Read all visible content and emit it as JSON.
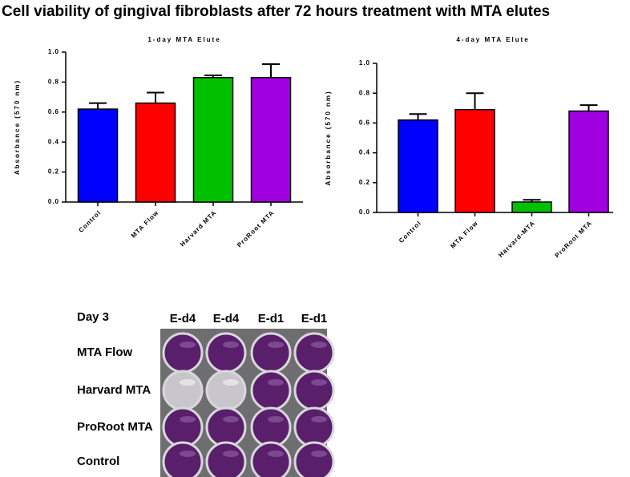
{
  "title": "Cell viability of gingival fibroblasts after 72 hours treatment with MTA elutes",
  "chart_data": [
    {
      "type": "bar",
      "title": "1-day MTA Elute",
      "y_label": "Absorbance (570 nm)",
      "categories": [
        "Control",
        "MTA Flow",
        "Harvard MTA",
        "ProRoot MTA"
      ],
      "colors": [
        "#0000ff",
        "#ff0000",
        "#00c000",
        "#a000e0"
      ],
      "values": [
        0.62,
        0.66,
        0.83,
        0.83
      ],
      "errors": [
        0.04,
        0.07,
        0.015,
        0.09
      ],
      "ylim": [
        0,
        1
      ],
      "yticks": [
        {
          "value": 0,
          "label": "0.0"
        },
        0.2,
        0.4,
        0.6,
        0.8,
        {
          "value": 1,
          "label": "1.0"
        }
      ]
    },
    {
      "type": "bar",
      "title": "4-day MTA Elute",
      "y_label": "Absorbance (570 nm)",
      "categories": [
        "Control",
        "MTA Flow",
        "Harvard-MTA",
        "ProRoot MTA"
      ],
      "colors": [
        "#0000ff",
        "#ff0000",
        "#00c000",
        "#a000e0"
      ],
      "values": [
        0.62,
        0.69,
        0.07,
        0.68
      ],
      "errors": [
        0.04,
        0.11,
        0.015,
        0.04
      ],
      "ylim": [
        0,
        1
      ],
      "yticks": [
        {
          "value": 0,
          "label": "0.0"
        },
        0.2,
        0.4,
        0.6,
        0.8,
        {
          "value": 1,
          "label": "1.0"
        }
      ]
    }
  ],
  "photo": {
    "title": "Day 3",
    "columns": [
      "E-d4",
      "E-d4",
      "E-d1",
      "E-d1"
    ],
    "rows": [
      "MTA Flow",
      "Harvard MTA",
      "ProRoot MTA",
      "Control"
    ]
  }
}
